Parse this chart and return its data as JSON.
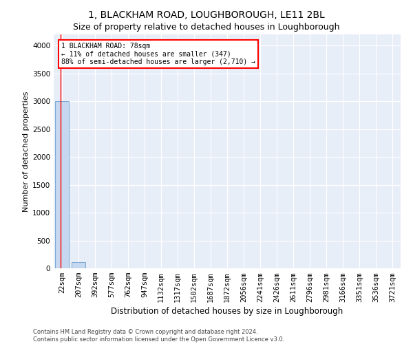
{
  "title1": "1, BLACKHAM ROAD, LOUGHBOROUGH, LE11 2BL",
  "title2": "Size of property relative to detached houses in Loughborough",
  "xlabel": "Distribution of detached houses by size in Loughborough",
  "ylabel": "Number of detached properties",
  "categories": [
    "22sqm",
    "207sqm",
    "392sqm",
    "577sqm",
    "762sqm",
    "947sqm",
    "1132sqm",
    "1317sqm",
    "1502sqm",
    "1687sqm",
    "1872sqm",
    "2056sqm",
    "2241sqm",
    "2426sqm",
    "2611sqm",
    "2796sqm",
    "2981sqm",
    "3166sqm",
    "3351sqm",
    "3536sqm",
    "3721sqm"
  ],
  "values": [
    3000,
    115,
    0,
    0,
    0,
    0,
    0,
    0,
    0,
    0,
    0,
    0,
    0,
    0,
    0,
    0,
    0,
    0,
    0,
    0,
    0
  ],
  "bar_color": "#c5d8f0",
  "bar_edge_color": "#7aa8d4",
  "annotation_text_line1": "1 BLACKHAM ROAD: 78sqm",
  "annotation_text_line2": "← 11% of detached houses are smaller (347)",
  "annotation_text_line3": "88% of semi-detached houses are larger (2,710) →",
  "annotation_box_facecolor": "white",
  "annotation_box_edgecolor": "red",
  "ylim": [
    0,
    4200
  ],
  "yticks": [
    0,
    500,
    1000,
    1500,
    2000,
    2500,
    3000,
    3500,
    4000
  ],
  "footnote1": "Contains HM Land Registry data © Crown copyright and database right 2024.",
  "footnote2": "Contains public sector information licensed under the Open Government Licence v3.0.",
  "background_color": "#e8eef8",
  "grid_color": "white",
  "property_line_x": -0.07,
  "title1_fontsize": 10,
  "title2_fontsize": 9,
  "ylabel_fontsize": 8,
  "xlabel_fontsize": 8.5,
  "tick_fontsize": 7.5,
  "footnote_fontsize": 6
}
